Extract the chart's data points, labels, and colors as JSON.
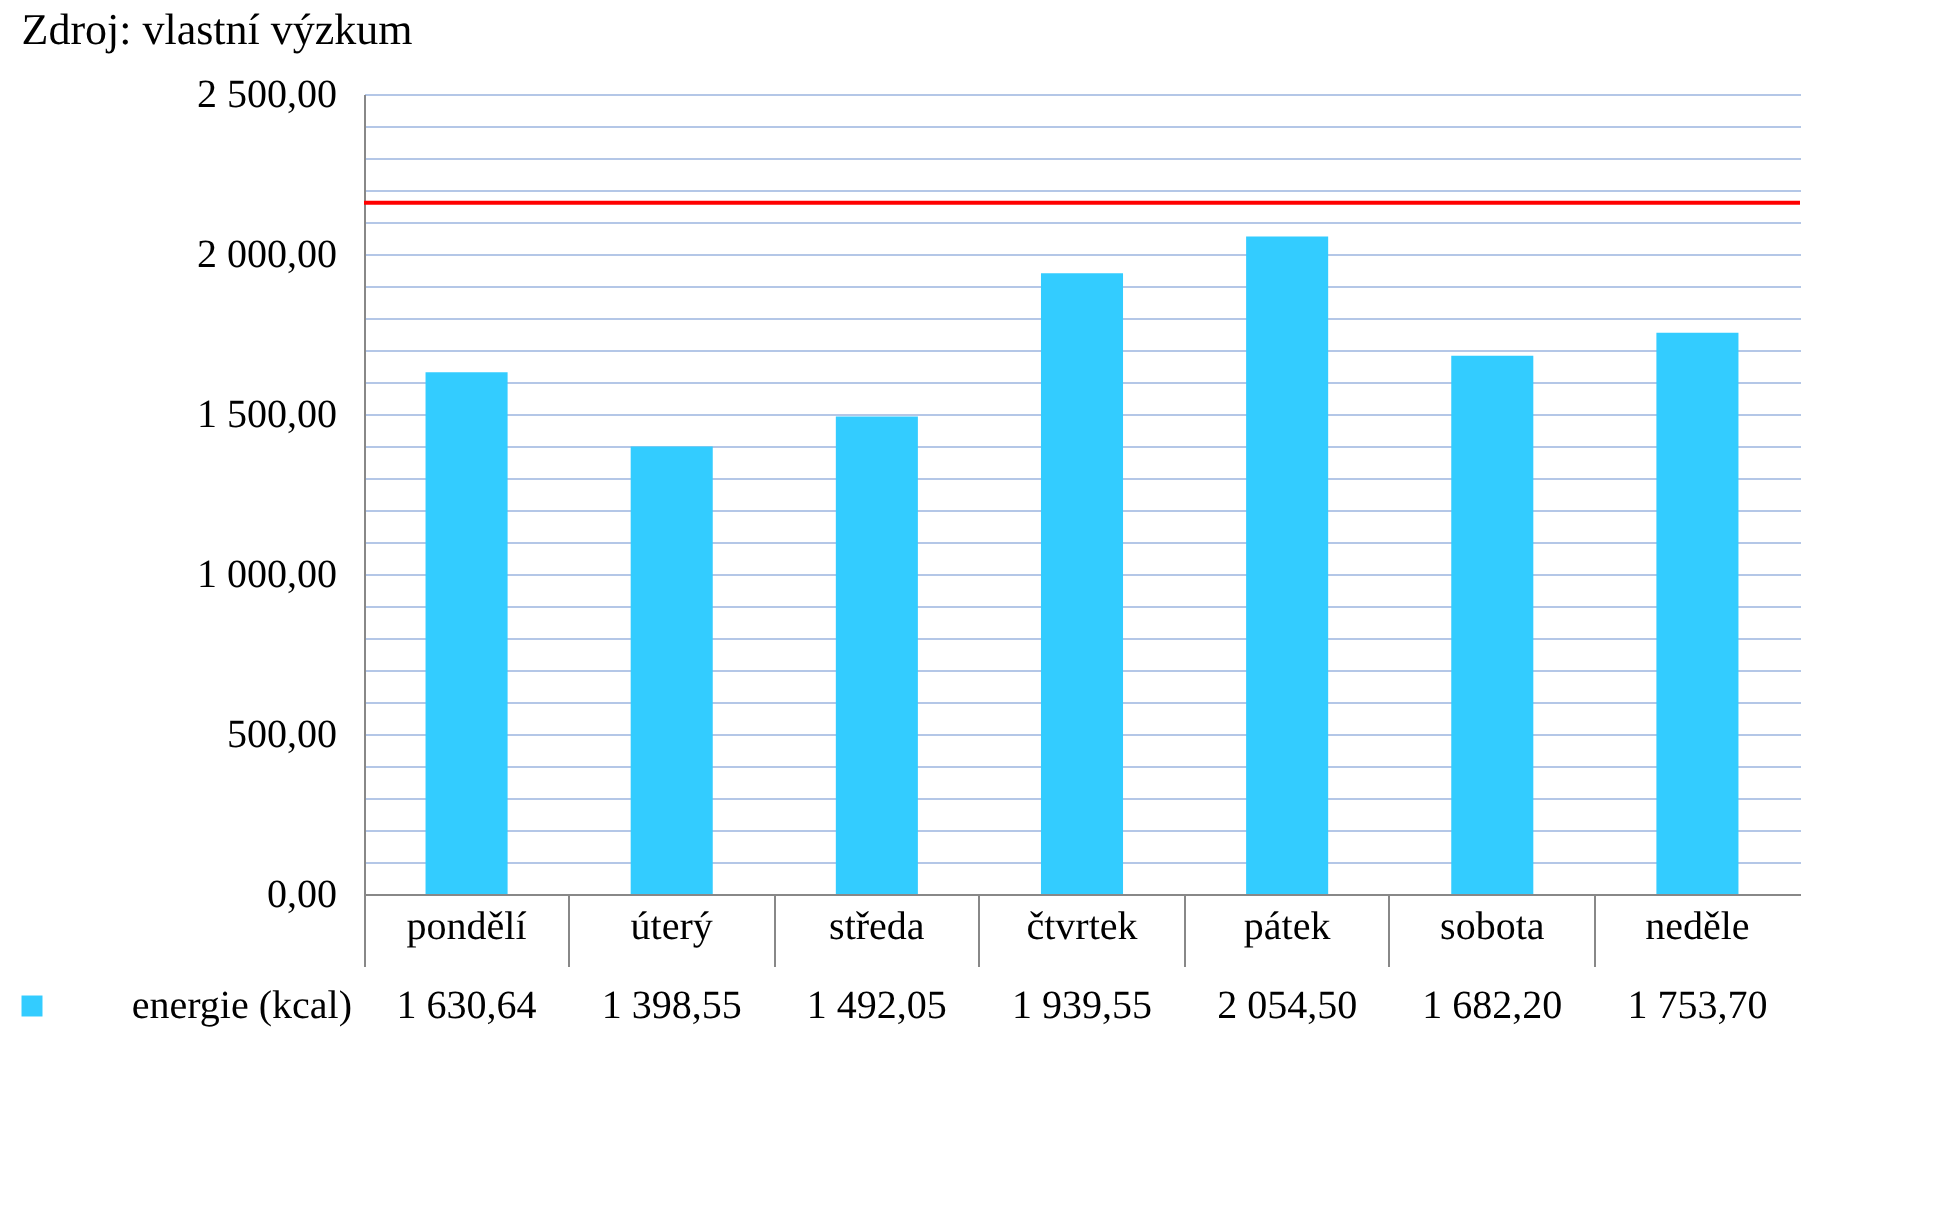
{
  "chart_data": {
    "type": "bar",
    "annotations": [
      "Zdroj: vlastní výzkum"
    ],
    "categories": [
      "pondělí",
      "úterý",
      "středa",
      "čtvrtek",
      "pátek",
      "sobota",
      "neděle"
    ],
    "series": [
      {
        "name": "energie (kcal)",
        "color": "#33ccff",
        "values": [
          1630.64,
          1398.55,
          1492.05,
          1939.55,
          2054.5,
          1682.2,
          1753.7
        ],
        "value_labels": [
          "1 630,64",
          "1 398,55",
          "1 492,05",
          "1 939,55",
          "2 054,50",
          "1 682,20",
          "1 753,70"
        ]
      }
    ],
    "ylim": [
      0,
      2500
    ],
    "yticks": [
      {
        "value": 0,
        "label": "0,00"
      },
      {
        "value": 100,
        "label": null
      },
      {
        "value": 200,
        "label": null
      },
      {
        "value": 300,
        "label": null
      },
      {
        "value": 400,
        "label": null
      },
      {
        "value": 500,
        "label": "500,00"
      },
      {
        "value": 600,
        "label": null
      },
      {
        "value": 700,
        "label": null
      },
      {
        "value": 800,
        "label": null
      },
      {
        "value": 900,
        "label": null
      },
      {
        "value": 1000,
        "label": "1 000,00"
      },
      {
        "value": 1100,
        "label": null
      },
      {
        "value": 1200,
        "label": null
      },
      {
        "value": 1300,
        "label": null
      },
      {
        "value": 1400,
        "label": null
      },
      {
        "value": 1500,
        "label": "1 500,00"
      },
      {
        "value": 1600,
        "label": null
      },
      {
        "value": 1700,
        "label": null
      },
      {
        "value": 1800,
        "label": null
      },
      {
        "value": 1900,
        "label": null
      },
      {
        "value": 2000,
        "label": "2 000,00"
      },
      {
        "value": 2100,
        "label": null
      },
      {
        "value": 2200,
        "label": null
      },
      {
        "value": 2300,
        "label": null
      },
      {
        "value": 2400,
        "label": null
      },
      {
        "value": 2500,
        "label": "2 500,00"
      }
    ],
    "grid": "y",
    "legend": "bottom",
    "ref_lines": [
      {
        "axis": "y",
        "value": 2160,
        "color": "#ff0000"
      }
    ]
  }
}
